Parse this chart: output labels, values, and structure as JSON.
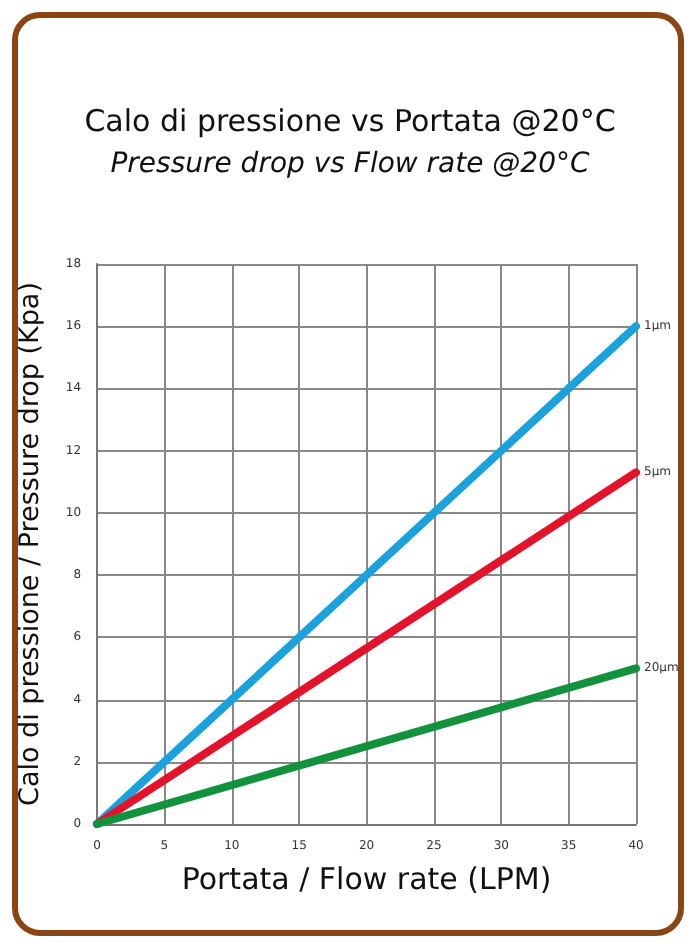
{
  "chart_data": {
    "type": "line",
    "title": "Calo di pressione vs Portata @20°C",
    "subtitle": "Pressure drop vs Flow rate @20°C",
    "xlabel": "Portata / Flow rate (LPM)",
    "ylabel": "Calo di pressione / Pressure drop (Kpa)",
    "x": [
      0,
      40
    ],
    "series": [
      {
        "name": "1µm",
        "color": "#1ba1dc",
        "values": [
          0,
          16
        ]
      },
      {
        "name": "5µm",
        "color": "#e3132c",
        "values": [
          0,
          11.3
        ]
      },
      {
        "name": "20µm",
        "color": "#13923e",
        "values": [
          0,
          5
        ]
      }
    ],
    "xlim": [
      0,
      40
    ],
    "xticks": [
      0,
      5,
      10,
      15,
      20,
      25,
      30,
      35,
      40
    ],
    "ylim": [
      0,
      18
    ],
    "yticks": [
      0,
      2,
      4,
      6,
      8,
      10,
      12,
      14,
      16,
      18
    ],
    "grid": true,
    "marker": "none",
    "line_style": "solid",
    "legend": false
  }
}
